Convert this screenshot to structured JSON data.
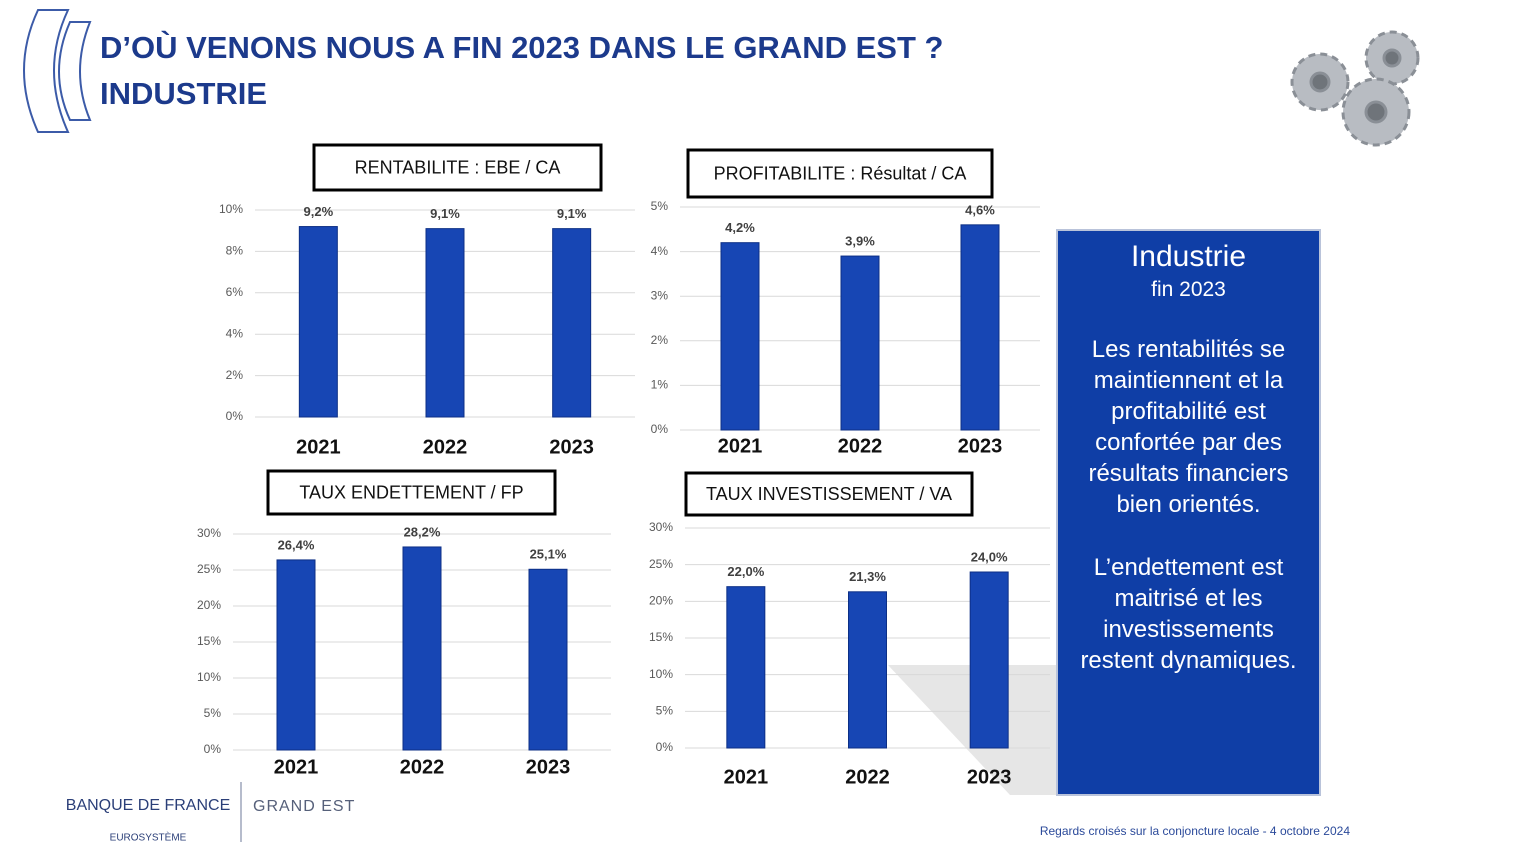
{
  "header": {
    "title": "D’OÙ VENONS NOUS A FIN 2023 DANS LE GRAND EST ?",
    "subtitle": "INDUSTRIE"
  },
  "chart_data": [
    {
      "type": "bar",
      "title": "RENTABILITE : EBE / CA",
      "categories": [
        "2021",
        "2022",
        "2023"
      ],
      "values": [
        9.2,
        9.1,
        9.1
      ],
      "value_labels": [
        "9,2%",
        "9,1%",
        "9,1%"
      ],
      "color": "#1746b4",
      "ylim": [
        0,
        10
      ],
      "yticks": [
        {
          "value": 0,
          "label": "0%"
        },
        {
          "value": 2,
          "label": "2%"
        },
        {
          "value": 4,
          "label": "4%"
        },
        {
          "value": 6,
          "label": "6%"
        },
        {
          "value": 8,
          "label": "8%"
        },
        {
          "value": 10,
          "label": "10%"
        }
      ],
      "grid": true
    },
    {
      "type": "bar",
      "title": "PROFITABILITE : Résultat / CA",
      "categories": [
        "2021",
        "2022",
        "2023"
      ],
      "values": [
        4.2,
        3.9,
        4.6
      ],
      "value_labels": [
        "4,2%",
        "3,9%",
        "4,6%"
      ],
      "color": "#1746b4",
      "ylim": [
        0,
        5
      ],
      "yticks": [
        {
          "value": 0,
          "label": "0%"
        },
        {
          "value": 1,
          "label": "1%"
        },
        {
          "value": 2,
          "label": "2%"
        },
        {
          "value": 3,
          "label": "3%"
        },
        {
          "value": 4,
          "label": "4%"
        },
        {
          "value": 5,
          "label": "5%"
        }
      ],
      "grid": true
    },
    {
      "type": "bar",
      "title": "TAUX ENDETTEMENT / FP",
      "categories": [
        "2021",
        "2022",
        "2023"
      ],
      "values": [
        26.4,
        28.2,
        25.1
      ],
      "value_labels": [
        "26,4%",
        "28,2%",
        "25,1%"
      ],
      "color": "#1746b4",
      "ylim": [
        0,
        30
      ],
      "yticks": [
        {
          "value": 0,
          "label": "0%"
        },
        {
          "value": 5,
          "label": "5%"
        },
        {
          "value": 10,
          "label": "10%"
        },
        {
          "value": 15,
          "label": "15%"
        },
        {
          "value": 20,
          "label": "20%"
        },
        {
          "value": 25,
          "label": "25%"
        },
        {
          "value": 30,
          "label": "30%"
        }
      ],
      "grid": true
    },
    {
      "type": "bar",
      "title": "TAUX INVESTISSEMENT / VA",
      "categories": [
        "2021",
        "2022",
        "2023"
      ],
      "values": [
        22.0,
        21.3,
        24.0
      ],
      "value_labels": [
        "22,0%",
        "21,3%",
        "24,0%"
      ],
      "color": "#1746b4",
      "ylim": [
        0,
        30
      ],
      "yticks": [
        {
          "value": 0,
          "label": "0%"
        },
        {
          "value": 5,
          "label": "5%"
        },
        {
          "value": 10,
          "label": "10%"
        },
        {
          "value": 15,
          "label": "15%"
        },
        {
          "value": 20,
          "label": "20%"
        },
        {
          "value": 25,
          "label": "25%"
        },
        {
          "value": 30,
          "label": "30%"
        }
      ],
      "grid": true
    }
  ],
  "sidebar": {
    "title": "Industrie",
    "subtitle": "fin 2023",
    "paragraphs": [
      "Les rentabilités se maintiennent et la profitabilité est confortée par des résultats financiers bien orientés.",
      "L’endettement est maitrisé et les investissements restent dynamiques."
    ]
  },
  "footer": {
    "brand": "BANQUE DE FRANCE",
    "brand_sub": "EUROSYSTÈME",
    "region": "GRAND EST",
    "note": "Regards croisés sur la conjoncture locale - 4 octobre 2024"
  }
}
